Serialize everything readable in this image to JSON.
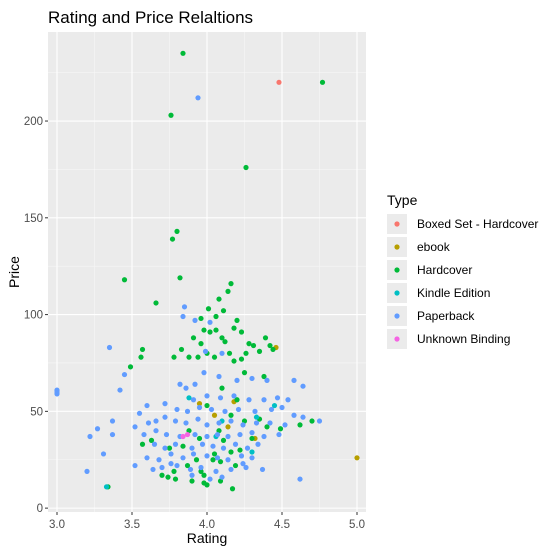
{
  "chart_data": {
    "type": "scatter",
    "title": "Rating and Price Relaltions",
    "xlabel": "Rating",
    "ylabel": "Price",
    "xlim": [
      2.94,
      5.06
    ],
    "ylim": [
      -2,
      246
    ],
    "x_ticks": [
      3.0,
      3.5,
      4.0,
      4.5,
      5.0
    ],
    "x_tick_labels": [
      "3.0",
      "3.5",
      "4.0",
      "4.5",
      "5.0"
    ],
    "y_ticks": [
      0,
      50,
      100,
      150,
      200
    ],
    "y_tick_labels": [
      "0",
      "50",
      "100",
      "150",
      "200"
    ],
    "grid": true,
    "background": "#ebebeb",
    "legend": {
      "title": "Type",
      "placement": "right"
    },
    "series": [
      {
        "name": "Boxed Set - Hardcover",
        "color": "#F8766D",
        "points": [
          [
            4.48,
            220
          ]
        ]
      },
      {
        "name": "ebook",
        "color": "#B79F00",
        "points": [
          [
            5.0,
            26
          ],
          [
            4.46,
            83
          ],
          [
            3.95,
            54
          ],
          [
            4.14,
            42
          ],
          [
            4.32,
            36
          ],
          [
            4.05,
            48
          ],
          [
            4.18,
            55
          ]
        ]
      },
      {
        "name": "Hardcover",
        "color": "#00BA38",
        "points": [
          [
            3.84,
            235
          ],
          [
            4.77,
            220
          ],
          [
            3.76,
            203
          ],
          [
            4.26,
            176
          ],
          [
            3.8,
            143
          ],
          [
            3.77,
            139
          ],
          [
            3.82,
            119
          ],
          [
            3.45,
            118
          ],
          [
            4.16,
            116
          ],
          [
            4.14,
            112
          ],
          [
            4.08,
            108
          ],
          [
            3.66,
            106
          ],
          [
            4.01,
            103
          ],
          [
            4.11,
            102
          ],
          [
            4.06,
            99
          ],
          [
            3.96,
            98
          ],
          [
            4.2,
            97
          ],
          [
            3.98,
            92
          ],
          [
            4.02,
            91
          ],
          [
            4.06,
            92
          ],
          [
            4.18,
            93
          ],
          [
            4.23,
            91
          ],
          [
            4.1,
            88
          ],
          [
            3.91,
            88
          ],
          [
            3.96,
            85
          ],
          [
            4.12,
            86
          ],
          [
            4.28,
            85
          ],
          [
            4.31,
            84
          ],
          [
            4.39,
            88
          ],
          [
            4.42,
            84
          ],
          [
            3.83,
            82
          ],
          [
            4.0,
            80
          ],
          [
            4.15,
            80
          ],
          [
            4.26,
            80
          ],
          [
            4.35,
            81
          ],
          [
            4.44,
            82
          ],
          [
            3.78,
            78
          ],
          [
            3.88,
            78
          ],
          [
            3.94,
            78
          ],
          [
            4.05,
            78
          ],
          [
            4.18,
            76
          ],
          [
            4.23,
            77
          ],
          [
            3.57,
            82
          ],
          [
            3.56,
            78
          ],
          [
            3.49,
            73
          ],
          [
            4.25,
            70
          ],
          [
            4.38,
            68
          ],
          [
            4.1,
            62
          ],
          [
            4.2,
            56
          ],
          [
            4.0,
            53
          ],
          [
            4.16,
            48
          ],
          [
            4.35,
            46
          ],
          [
            3.88,
            40
          ],
          [
            4.08,
            40
          ],
          [
            4.4,
            42
          ],
          [
            4.25,
            45
          ],
          [
            3.95,
            36
          ],
          [
            4.11,
            35
          ],
          [
            4.3,
            36
          ],
          [
            3.63,
            35
          ],
          [
            3.57,
            33
          ],
          [
            3.75,
            31
          ],
          [
            3.84,
            32
          ],
          [
            4.05,
            28
          ],
          [
            4.16,
            29
          ],
          [
            4.22,
            30
          ],
          [
            3.93,
            25
          ],
          [
            4.04,
            25
          ],
          [
            4.09,
            24
          ],
          [
            4.19,
            22
          ],
          [
            3.87,
            22
          ],
          [
            3.78,
            19
          ],
          [
            3.96,
            19
          ],
          [
            3.7,
            17
          ],
          [
            3.74,
            16
          ],
          [
            3.79,
            15
          ],
          [
            3.9,
            14
          ],
          [
            3.98,
            13
          ],
          [
            4.0,
            12
          ],
          [
            4.09,
            14
          ],
          [
            4.17,
            10
          ],
          [
            3.98,
            17
          ],
          [
            3.34,
            11
          ],
          [
            4.7,
            45
          ],
          [
            4.62,
            43
          ],
          [
            4.49,
            41
          ]
        ]
      },
      {
        "name": "Kindle Edition",
        "color": "#00BFC4",
        "points": [
          [
            3.33,
            11
          ],
          [
            4.33,
            47
          ],
          [
            4.1,
            45
          ],
          [
            4.45,
            53
          ],
          [
            3.88,
            57
          ],
          [
            4.3,
            29
          ],
          [
            4.06,
            37
          ]
        ]
      },
      {
        "name": "Paperback",
        "color": "#619CFF",
        "points": [
          [
            3.94,
            212
          ],
          [
            3.0,
            61
          ],
          [
            3.0,
            59
          ],
          [
            3.0,
            60
          ],
          [
            3.35,
            83
          ],
          [
            3.92,
            97
          ],
          [
            3.85,
            104
          ],
          [
            3.84,
            99
          ],
          [
            4.02,
            96
          ],
          [
            3.99,
            81
          ],
          [
            4.1,
            80
          ],
          [
            3.45,
            69
          ],
          [
            3.42,
            61
          ],
          [
            3.6,
            53
          ],
          [
            3.82,
            64
          ],
          [
            3.86,
            62
          ],
          [
            3.92,
            64
          ],
          [
            3.98,
            70
          ],
          [
            4.08,
            68
          ],
          [
            4.2,
            66
          ],
          [
            4.3,
            67
          ],
          [
            4.4,
            66
          ],
          [
            4.58,
            66
          ],
          [
            4.64,
            63
          ],
          [
            3.91,
            56
          ],
          [
            4.0,
            58
          ],
          [
            4.09,
            57
          ],
          [
            4.18,
            58
          ],
          [
            4.28,
            56
          ],
          [
            4.38,
            56
          ],
          [
            4.47,
            57
          ],
          [
            4.54,
            56
          ],
          [
            3.72,
            54
          ],
          [
            3.8,
            51
          ],
          [
            3.87,
            50
          ],
          [
            3.95,
            52
          ],
          [
            4.03,
            51
          ],
          [
            4.12,
            50
          ],
          [
            4.21,
            51
          ],
          [
            4.32,
            50
          ],
          [
            4.43,
            51
          ],
          [
            4.5,
            52
          ],
          [
            4.58,
            48
          ],
          [
            4.64,
            47
          ],
          [
            4.75,
            45
          ],
          [
            3.55,
            49
          ],
          [
            3.61,
            44
          ],
          [
            3.66,
            45
          ],
          [
            3.72,
            47
          ],
          [
            3.79,
            45
          ],
          [
            3.86,
            44
          ],
          [
            3.94,
            46
          ],
          [
            4.0,
            43
          ],
          [
            4.08,
            44
          ],
          [
            4.16,
            45
          ],
          [
            4.24,
            43
          ],
          [
            4.33,
            44
          ],
          [
            4.42,
            44
          ],
          [
            4.52,
            43
          ],
          [
            3.37,
            45
          ],
          [
            3.27,
            41
          ],
          [
            3.52,
            42
          ],
          [
            3.58,
            38
          ],
          [
            3.66,
            40
          ],
          [
            3.73,
            38
          ],
          [
            3.82,
            37
          ],
          [
            3.92,
            38
          ],
          [
            4.0,
            37
          ],
          [
            4.07,
            38
          ],
          [
            4.14,
            37
          ],
          [
            4.22,
            38
          ],
          [
            4.3,
            39
          ],
          [
            4.38,
            37
          ],
          [
            4.48,
            38
          ],
          [
            3.37,
            38
          ],
          [
            3.22,
            37
          ],
          [
            3.65,
            33
          ],
          [
            3.72,
            31
          ],
          [
            3.79,
            33
          ],
          [
            3.9,
            31
          ],
          [
            3.97,
            33
          ],
          [
            4.04,
            32
          ],
          [
            4.11,
            31
          ],
          [
            4.19,
            33
          ],
          [
            4.27,
            31
          ],
          [
            4.34,
            33
          ],
          [
            3.6,
            26
          ],
          [
            3.68,
            25
          ],
          [
            3.76,
            28
          ],
          [
            3.84,
            26
          ],
          [
            3.91,
            28
          ],
          [
            4.0,
            27
          ],
          [
            4.07,
            26
          ],
          [
            4.14,
            25
          ],
          [
            4.23,
            27
          ],
          [
            4.3,
            26
          ],
          [
            3.31,
            28
          ],
          [
            3.52,
            22
          ],
          [
            3.64,
            20
          ],
          [
            3.7,
            21
          ],
          [
            3.8,
            22
          ],
          [
            3.89,
            20
          ],
          [
            3.96,
            21
          ],
          [
            4.06,
            19
          ],
          [
            4.16,
            20
          ],
          [
            4.26,
            21
          ],
          [
            4.37,
            20
          ],
          [
            3.9,
            17
          ],
          [
            4.02,
            15
          ],
          [
            4.1,
            16
          ],
          [
            4.62,
            15
          ],
          [
            3.2,
            19
          ],
          [
            3.76,
            23
          ],
          [
            4.24,
            23
          ]
        ]
      },
      {
        "name": "Unknown Binding",
        "color": "#F564E3",
        "points": [
          [
            3.87,
            38
          ],
          [
            3.84,
            37
          ]
        ]
      }
    ]
  }
}
